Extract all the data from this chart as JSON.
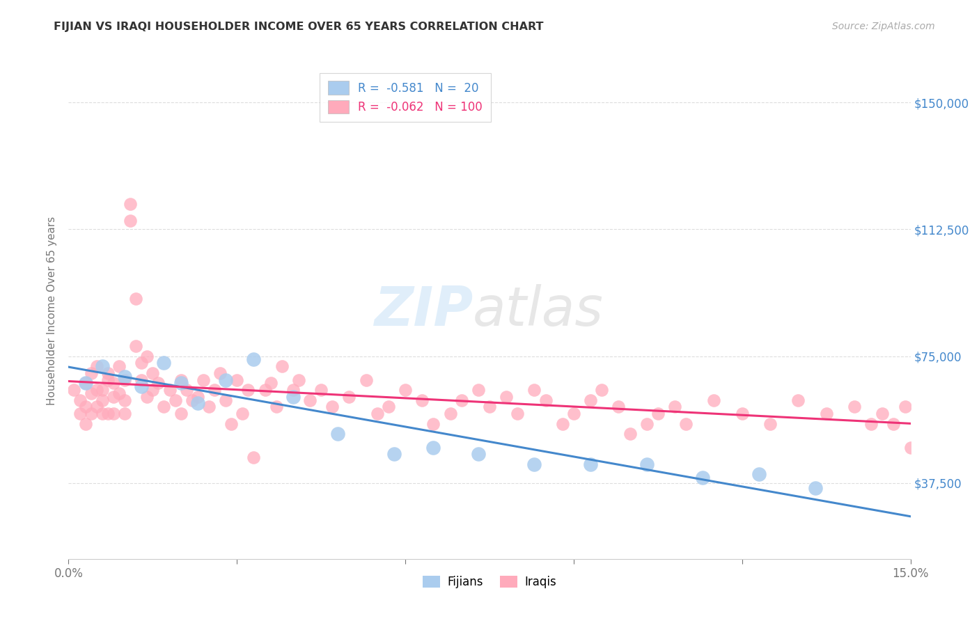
{
  "title": "FIJIAN VS IRAQI HOUSEHOLDER INCOME OVER 65 YEARS CORRELATION CHART",
  "source": "Source: ZipAtlas.com",
  "ylabel": "Householder Income Over 65 years",
  "ytick_labels": [
    "$37,500",
    "$75,000",
    "$112,500",
    "$150,000"
  ],
  "ytick_values": [
    37500,
    75000,
    112500,
    150000
  ],
  "xmin": 0.0,
  "xmax": 0.15,
  "ymin": 15000,
  "ymax": 162000,
  "fijian_color": "#aaccee",
  "iraqi_color": "#ffaabb",
  "fijian_line_color": "#4488cc",
  "iraqi_line_color": "#ee3377",
  "fijian_R": -0.581,
  "fijian_N": 20,
  "iraqi_R": -0.062,
  "iraqi_N": 100,
  "watermark_zip": "ZIP",
  "watermark_atlas": "atlas",
  "background_color": "#ffffff",
  "grid_color": "#dddddd",
  "legend_label_fijian": "Fijians",
  "legend_label_iraqi": "Iraqis",
  "fijian_x": [
    0.003,
    0.006,
    0.01,
    0.013,
    0.017,
    0.02,
    0.023,
    0.028,
    0.033,
    0.04,
    0.048,
    0.058,
    0.065,
    0.073,
    0.083,
    0.093,
    0.103,
    0.113,
    0.123,
    0.133
  ],
  "fijian_y": [
    67000,
    72000,
    69000,
    66000,
    73000,
    67000,
    61000,
    68000,
    74000,
    63000,
    52000,
    46000,
    48000,
    46000,
    43000,
    43000,
    43000,
    39000,
    40000,
    36000
  ],
  "iraqi_x": [
    0.001,
    0.002,
    0.002,
    0.003,
    0.003,
    0.003,
    0.004,
    0.004,
    0.004,
    0.005,
    0.005,
    0.005,
    0.006,
    0.006,
    0.006,
    0.007,
    0.007,
    0.007,
    0.008,
    0.008,
    0.008,
    0.009,
    0.009,
    0.01,
    0.01,
    0.01,
    0.011,
    0.011,
    0.012,
    0.012,
    0.013,
    0.013,
    0.014,
    0.014,
    0.015,
    0.015,
    0.016,
    0.017,
    0.018,
    0.019,
    0.02,
    0.02,
    0.021,
    0.022,
    0.023,
    0.024,
    0.025,
    0.026,
    0.027,
    0.028,
    0.029,
    0.03,
    0.031,
    0.032,
    0.033,
    0.035,
    0.036,
    0.037,
    0.038,
    0.04,
    0.041,
    0.043,
    0.045,
    0.047,
    0.05,
    0.053,
    0.055,
    0.057,
    0.06,
    0.063,
    0.065,
    0.068,
    0.07,
    0.073,
    0.075,
    0.078,
    0.08,
    0.083,
    0.085,
    0.088,
    0.09,
    0.093,
    0.095,
    0.098,
    0.1,
    0.103,
    0.105,
    0.108,
    0.11,
    0.115,
    0.12,
    0.125,
    0.13,
    0.135,
    0.14,
    0.143,
    0.145,
    0.147,
    0.149,
    0.15
  ],
  "iraqi_y": [
    65000,
    62000,
    58000,
    60000,
    67000,
    55000,
    64000,
    58000,
    70000,
    65000,
    60000,
    72000,
    58000,
    65000,
    62000,
    68000,
    58000,
    70000,
    63000,
    67000,
    58000,
    72000,
    64000,
    58000,
    68000,
    62000,
    120000,
    115000,
    92000,
    78000,
    73000,
    68000,
    63000,
    75000,
    65000,
    70000,
    67000,
    60000,
    65000,
    62000,
    68000,
    58000,
    65000,
    62000,
    63000,
    68000,
    60000,
    65000,
    70000,
    62000,
    55000,
    68000,
    58000,
    65000,
    45000,
    65000,
    67000,
    60000,
    72000,
    65000,
    68000,
    62000,
    65000,
    60000,
    63000,
    68000,
    58000,
    60000,
    65000,
    62000,
    55000,
    58000,
    62000,
    65000,
    60000,
    63000,
    58000,
    65000,
    62000,
    55000,
    58000,
    62000,
    65000,
    60000,
    52000,
    55000,
    58000,
    60000,
    55000,
    62000,
    58000,
    55000,
    62000,
    58000,
    60000,
    55000,
    58000,
    55000,
    60000,
    48000
  ]
}
